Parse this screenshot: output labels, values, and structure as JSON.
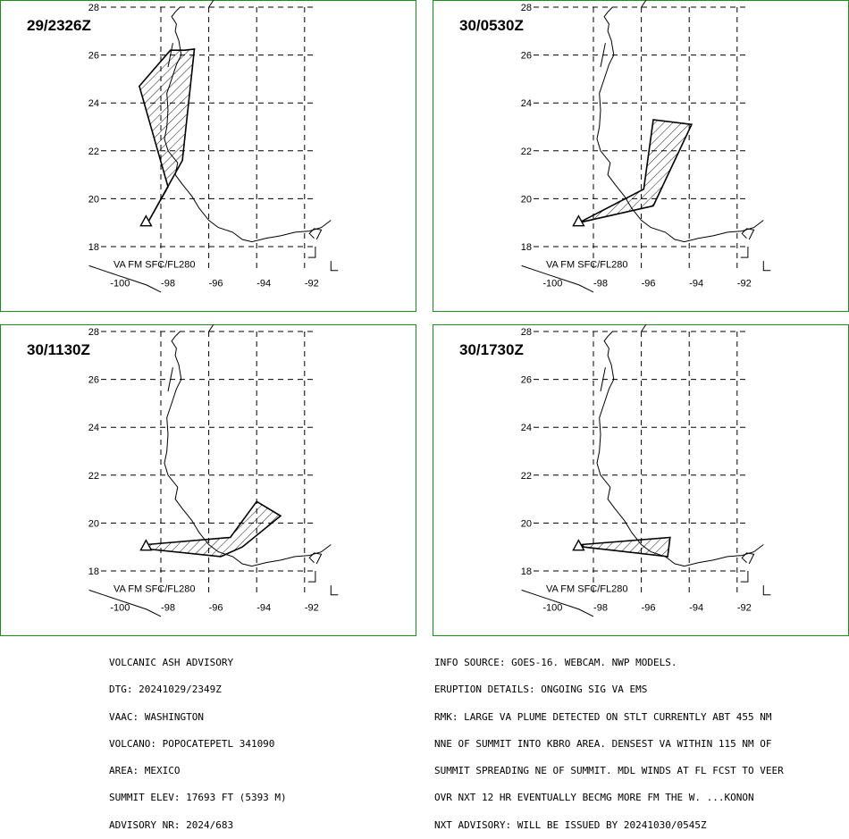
{
  "panels": [
    {
      "time": "29/2326Z",
      "level": "VA FM SFC/FL280",
      "plume": [
        [
          -97.0,
          26.2
        ],
        [
          -96.6,
          26.25
        ],
        [
          -97.1,
          21.6
        ],
        [
          -98.6,
          18.9
        ],
        [
          -97.7,
          20.5
        ],
        [
          -98.9,
          24.7
        ],
        [
          -97.6,
          26.2
        ]
      ]
    },
    {
      "time": "30/0530Z",
      "level": "VA FM SFC/FL280",
      "plume": [
        [
          -98.6,
          19.0
        ],
        [
          -95.9,
          20.4
        ],
        [
          -95.5,
          23.3
        ],
        [
          -93.9,
          23.1
        ],
        [
          -95.5,
          19.7
        ]
      ]
    },
    {
      "time": "30/1130Z",
      "level": "VA FM SFC/FL280",
      "plume": [
        [
          -98.6,
          19.1
        ],
        [
          -95.1,
          19.4
        ],
        [
          -94.0,
          20.9
        ],
        [
          -93.0,
          20.3
        ],
        [
          -94.6,
          19.0
        ],
        [
          -95.5,
          18.6
        ],
        [
          -98.4,
          18.9
        ]
      ]
    },
    {
      "time": "30/1730Z",
      "level": "VA FM SFC/FL280",
      "plume": [
        [
          -98.5,
          19.1
        ],
        [
          -94.8,
          19.4
        ],
        [
          -94.9,
          18.6
        ],
        [
          -98.4,
          19.0
        ]
      ]
    }
  ],
  "axes": {
    "lon_ticks": [
      "-100",
      "-98",
      "-96",
      "-94",
      "-92"
    ],
    "lat_ticks": [
      "28",
      "26",
      "24",
      "22",
      "20",
      "18"
    ]
  },
  "volcano_symbol": "triangle-icon",
  "advisory_left": [
    "VOLCANIC ASH ADVISORY",
    "DTG: 20241029/2349Z",
    "VAAC: WASHINGTON",
    "VOLCANO: POPOCATEPETL 341090",
    "AREA: MEXICO",
    "SUMMIT ELEV: 17693 FT (5393 M)",
    "ADVISORY NR: 2024/683"
  ],
  "advisory_right": [
    "INFO SOURCE: GOES-16. WEBCAM. NWP MODELS.",
    "ERUPTION DETAILS: ONGOING SIG VA EMS",
    "RMK: LARGE VA PLUME DETECTED ON STLT CURRENTLY ABT 455 NM",
    "NNE OF SUMMIT INTO KBRO AREA. DENSEST VA WITHIN 115 NM OF",
    "SUMMIT SPREADING NE OF SUMMIT. MDL WINDS AT FL FCST TO VEER",
    "OVR NXT 12 HR EVENTUALLY BECMG MORE FM THE W. ...KONON",
    "NXT ADVISORY: WILL BE ISSUED BY 20241030/0545Z"
  ],
  "colors": {
    "frame": "#1a8f1a",
    "lines": "#000000"
  }
}
